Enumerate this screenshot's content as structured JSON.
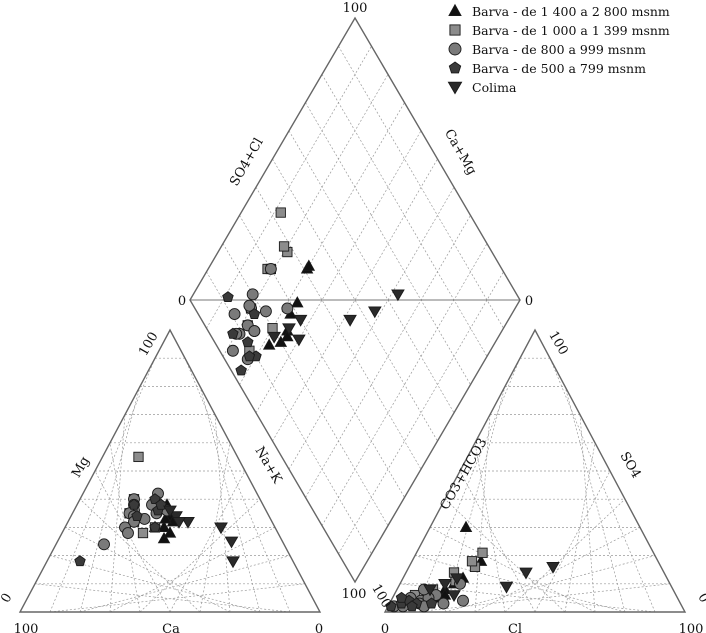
{
  "chart_data": {
    "type": "scatter",
    "subtype": "piper-diagram",
    "grid": true,
    "legend_position": "top-right",
    "legend": [
      {
        "label": "Barva - de 1 400 a 2 800 msnm",
        "marker": "triangle-up",
        "color": "#111111"
      },
      {
        "label": "Barva - de 1 000 a 1 399 msnm",
        "marker": "square",
        "color": "#8c8c8c"
      },
      {
        "label": "Barva - de 800 a 999 msnm",
        "marker": "circle",
        "color": "#7a7a7a"
      },
      {
        "label": "Barva - de 500 a 799 msnm",
        "marker": "pentagon",
        "color": "#3a3a3a"
      },
      {
        "label": "Colima",
        "marker": "triangle-down",
        "color": "#2a2a2a"
      }
    ],
    "cation_triangle": {
      "vertex_labels": {
        "top": "100",
        "bottom_left": "100",
        "bottom_right": "0",
        "left_of_bottom_left": "0",
        "right_of_bottom_right": "100"
      },
      "axis_labels": {
        "bottom": "Ca",
        "left": "Mg",
        "right": "Na+K"
      }
    },
    "anion_triangle": {
      "vertex_labels": {
        "top": "100",
        "bottom_left": "0",
        "bottom_right": "100",
        "left_of_bottom_left": "100",
        "right_of_bottom_right": "0"
      },
      "axis_labels": {
        "bottom": "Cl",
        "left": "CO3+HCO3",
        "right": "SO4"
      }
    },
    "diamond": {
      "vertex_labels": {
        "top": "100",
        "left": "0",
        "right": "0"
      },
      "axis_labels": {
        "upper_left": "SO4+Cl",
        "upper_right": "Ca+Mg"
      }
    },
    "series": [
      {
        "name": "Barva - de 1 400 a 2 800 msnm",
        "points": [
          {
            "mg": 38,
            "nak": 30,
            "so4": 18,
            "cl": 23
          },
          {
            "mg": 34,
            "nak": 33,
            "so4": 12,
            "cl": 20
          },
          {
            "mg": 30,
            "nak": 33,
            "so4": 10,
            "cl": 18
          },
          {
            "mg": 26,
            "nak": 35,
            "so4": 5,
            "cl": 15
          },
          {
            "mg": 32,
            "nak": 35,
            "so4": 8,
            "cl": 16
          },
          {
            "mg": 28,
            "nak": 36,
            "so4": 6,
            "cl": 17
          },
          {
            "mg": 33,
            "nak": 32,
            "so4": 4,
            "cl": 12
          },
          {
            "mg": 30,
            "nak": 30,
            "so4": 30,
            "cl": 12
          }
        ]
      },
      {
        "name": "Barva - de 1 000 a 1 399 msnm",
        "points": [
          {
            "mg": 55,
            "nak": 12,
            "so4": 21,
            "cl": 22
          },
          {
            "mg": 40,
            "nak": 18,
            "so4": 11,
            "cl": 18
          },
          {
            "mg": 38,
            "nak": 19,
            "so4": 14,
            "cl": 16
          },
          {
            "mg": 36,
            "nak": 20,
            "so4": 4,
            "cl": 13
          },
          {
            "mg": 34,
            "nak": 21,
            "so4": 16,
            "cl": 22
          },
          {
            "mg": 32,
            "nak": 22,
            "so4": 6,
            "cl": 7
          },
          {
            "mg": 30,
            "nak": 30,
            "so4": 8,
            "cl": 12
          },
          {
            "mg": 28,
            "nak": 27,
            "so4": 4,
            "cl": 5
          },
          {
            "mg": 35,
            "nak": 19,
            "so4": 18,
            "cl": 20
          }
        ]
      },
      {
        "name": "Barva - de 800 a 999 msnm",
        "points": [
          {
            "mg": 42,
            "nak": 25,
            "so4": 3,
            "cl": 18
          },
          {
            "mg": 40,
            "nak": 18,
            "so4": 6,
            "cl": 14
          },
          {
            "mg": 38,
            "nak": 19,
            "so4": 10,
            "cl": 20
          },
          {
            "mg": 38,
            "nak": 25,
            "so4": 4,
            "cl": 10
          },
          {
            "mg": 36,
            "nak": 20,
            "so4": 5,
            "cl": 12
          },
          {
            "mg": 35,
            "nak": 19,
            "so4": 8,
            "cl": 9
          },
          {
            "mg": 34,
            "nak": 21,
            "so4": 3,
            "cl": 6
          },
          {
            "mg": 32,
            "nak": 22,
            "so4": 2,
            "cl": 2
          },
          {
            "mg": 30,
            "nak": 20,
            "so4": 4,
            "cl": 4
          },
          {
            "mg": 28,
            "nak": 22,
            "so4": 3,
            "cl": 10
          },
          {
            "mg": 35,
            "nak": 28,
            "so4": 2,
            "cl": 5
          },
          {
            "mg": 24,
            "nak": 16,
            "so4": 5,
            "cl": 6
          },
          {
            "mg": 36,
            "nak": 31,
            "so4": 4,
            "cl": 24
          },
          {
            "mg": 33,
            "nak": 25,
            "so4": 2,
            "cl": 12
          }
        ]
      },
      {
        "name": "Barva - de 500 a 799 msnm",
        "points": [
          {
            "mg": 38,
            "nak": 19,
            "so4": 3,
            "cl": 4
          },
          {
            "mg": 40,
            "nak": 25,
            "so4": 4,
            "cl": 6
          },
          {
            "mg": 36,
            "nak": 28,
            "so4": 2,
            "cl": 1
          },
          {
            "mg": 18,
            "nak": 11,
            "so4": 3,
            "cl": 9
          },
          {
            "mg": 34,
            "nak": 22,
            "so4": 3,
            "cl": 14
          },
          {
            "mg": 30,
            "nak": 30,
            "so4": 2,
            "cl": 8
          },
          {
            "mg": 38,
            "nak": 28,
            "so4": 5,
            "cl": 3
          }
        ]
      },
      {
        "name": "Colima",
        "points": [
          {
            "mg": 30,
            "nak": 52,
            "so4": 9,
            "cl": 36
          },
          {
            "mg": 25,
            "nak": 58,
            "so4": 14,
            "cl": 40
          },
          {
            "mg": 18,
            "nak": 62,
            "so4": 16,
            "cl": 48
          },
          {
            "mg": 32,
            "nak": 40,
            "so4": 6,
            "cl": 20
          },
          {
            "mg": 34,
            "nak": 35,
            "so4": 10,
            "cl": 15
          },
          {
            "mg": 32,
            "nak": 37,
            "so4": 12,
            "cl": 18
          },
          {
            "mg": 36,
            "nak": 32,
            "so4": 8,
            "cl": 11
          }
        ]
      }
    ]
  }
}
